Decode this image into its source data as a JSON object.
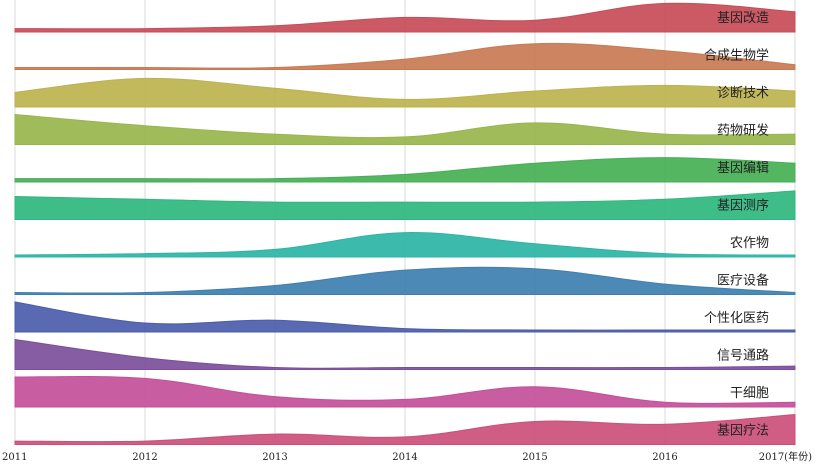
{
  "chart_data": {
    "type": "area",
    "x_ticks": [
      "2011",
      "2012",
      "2013",
      "2014",
      "2015",
      "2016",
      "2017(年份)"
    ],
    "x": [
      2011,
      2012,
      2013,
      2014,
      2015,
      2016,
      2017
    ],
    "grid": true,
    "series": [
      {
        "name": "基因改造",
        "color": "#c84c58",
        "values": [
          0.05,
          0.05,
          0.15,
          0.45,
          0.35,
          0.95,
          0.65
        ]
      },
      {
        "name": "合成生物学",
        "color": "#c97a52",
        "values": [
          0.0,
          0.0,
          0.0,
          0.3,
          0.85,
          0.6,
          0.1
        ]
      },
      {
        "name": "诊断技术",
        "color": "#bdb24e",
        "values": [
          0.45,
          0.95,
          0.6,
          0.2,
          0.5,
          0.7,
          0.5
        ]
      },
      {
        "name": "药物研发",
        "color": "#98b64c",
        "values": [
          1.0,
          0.6,
          0.3,
          0.2,
          0.7,
          0.3,
          0.3
        ]
      },
      {
        "name": "基因编辑",
        "color": "#45b052",
        "values": [
          0.05,
          0.05,
          0.05,
          0.2,
          0.6,
          0.8,
          0.6
        ]
      },
      {
        "name": "基因测序",
        "color": "#2fb77f",
        "values": [
          0.75,
          0.65,
          0.55,
          0.55,
          0.55,
          0.65,
          0.95
        ]
      },
      {
        "name": "农作物",
        "color": "#2bb5a6",
        "values": [
          0.0,
          0.05,
          0.2,
          0.8,
          0.4,
          0.05,
          0.0
        ]
      },
      {
        "name": "医疗设备",
        "color": "#3d7fb0",
        "values": [
          0.0,
          0.0,
          0.25,
          0.8,
          0.85,
          0.3,
          0.0
        ]
      },
      {
        "name": "个性化医药",
        "color": "#4b5cab",
        "values": [
          1.0,
          0.25,
          0.35,
          0.05,
          0.0,
          0.0,
          0.0
        ]
      },
      {
        "name": "信号通路",
        "color": "#7c4e9b",
        "values": [
          1.0,
          0.35,
          0.0,
          0.0,
          0.0,
          0.0,
          0.05
        ]
      },
      {
        "name": "干细胞",
        "color": "#c44f9a",
        "values": [
          1.0,
          0.95,
          0.3,
          0.2,
          0.65,
          0.1,
          0.1
        ]
      },
      {
        "name": "基因疗法",
        "color": "#cc4f78",
        "values": [
          0.05,
          0.05,
          0.3,
          0.2,
          0.75,
          0.65,
          1.0
        ]
      }
    ]
  }
}
